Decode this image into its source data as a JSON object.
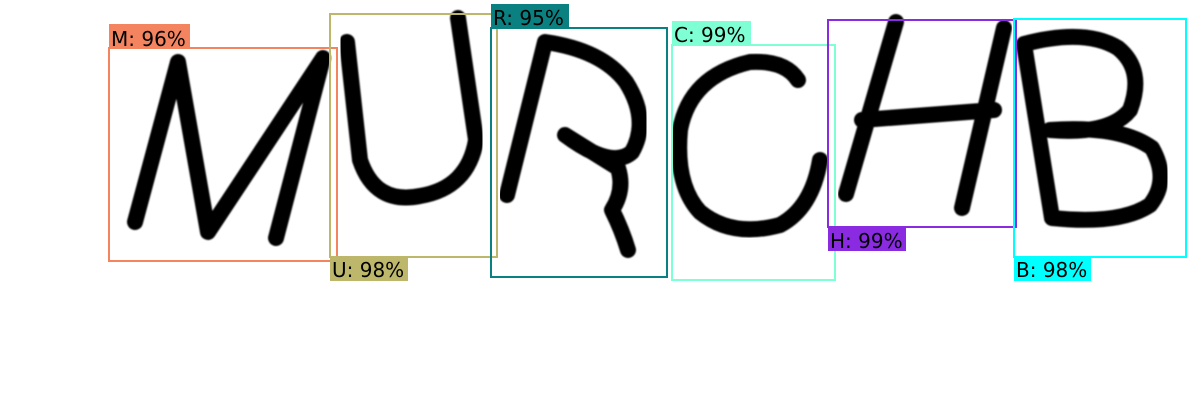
{
  "detections": [
    {
      "label": "M: 96%",
      "color": "#f4845f"
    },
    {
      "label": "U: 98%",
      "color": "#bdb76b"
    },
    {
      "label": "R: 95%",
      "color": "#0b8080"
    },
    {
      "label": "C: 99%",
      "color": "#7fffd4"
    },
    {
      "label": "H: 99%",
      "color": "#8a2be2"
    },
    {
      "label": "B: 98%",
      "color": "#00ffff"
    }
  ]
}
